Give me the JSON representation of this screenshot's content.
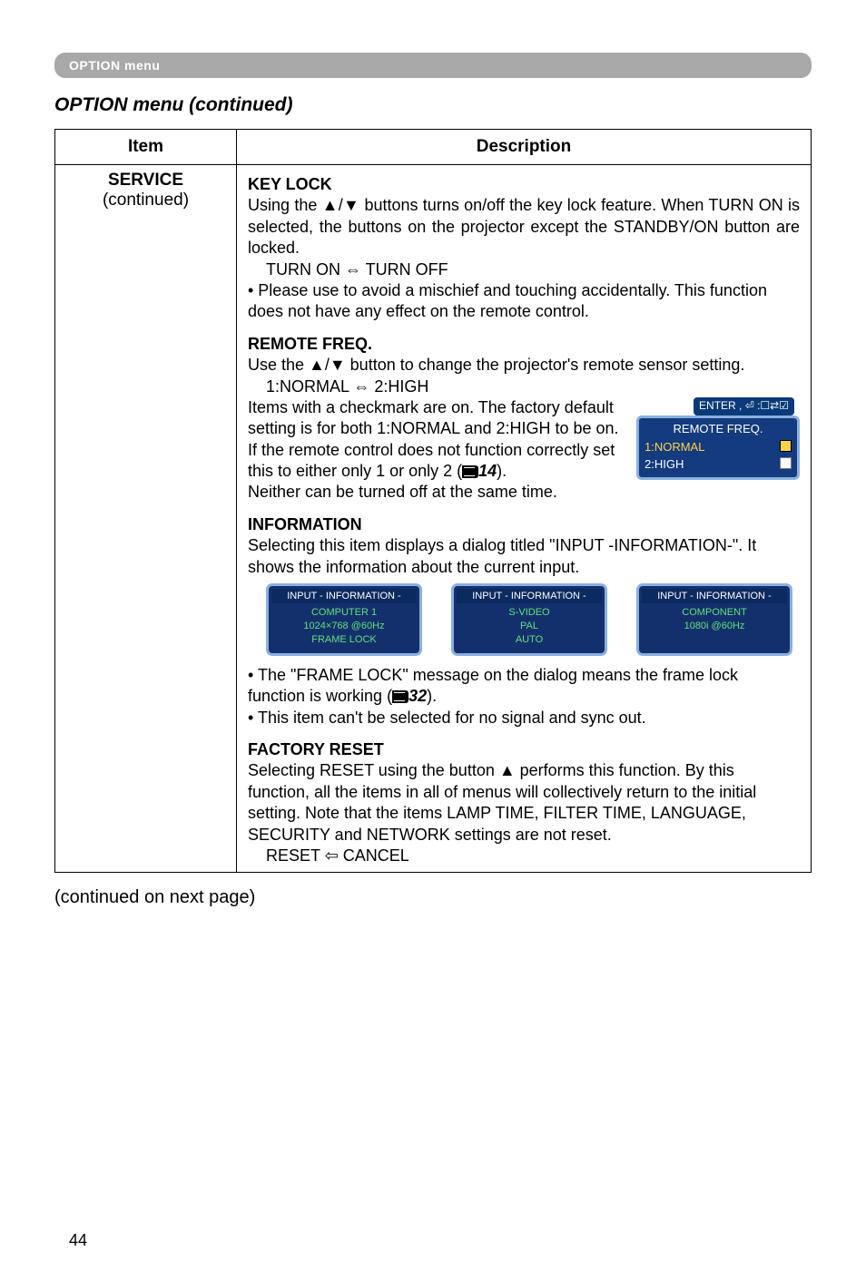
{
  "header_bar": "OPTION menu",
  "subtitle": "OPTION menu (continued)",
  "table": {
    "col_item": "Item",
    "col_desc": "Description",
    "left_service": "SERVICE",
    "left_continued": "(continued)"
  },
  "keylock": {
    "title": "KEY LOCK",
    "p1": "Using the ▲/▼ buttons turns on/off the key lock feature. When TURN ON is selected, the buttons on the projector except the STANDBY/ON button are locked.",
    "line_toggle": "TURN ON ⇔ TURN OFF",
    "bullet1": "• Please use to avoid a mischief and touching accidentally. This function does not have any effect on the remote control."
  },
  "remote": {
    "title": "REMOTE FREQ.",
    "p1": "Use the ▲/▼ button to change the projector's remote sensor setting.",
    "line_toggle": "1:NORMAL ⇔ 2:HIGH",
    "p2a": "Items with a checkmark are on. The factory default setting is for both 1:NORMAL and 2:HIGH to be on.  If the remote control does not function correctly set this to either only 1 or only 2 (",
    "ref": "14",
    "p2b": ").",
    "p3": "Neither can be turned off at the same time.",
    "panel": {
      "hint": "ENTER , ⏎ :☐⇄☑",
      "head": "REMOTE FREQ.",
      "opt1": "1:NORMAL",
      "opt2": "2:HIGH"
    }
  },
  "info": {
    "title": "INFORMATION",
    "p1": "Selecting this item displays a dialog titled \"INPUT -INFORMATION-\". It shows the information about the current input.",
    "boxes": [
      {
        "hdr": "INPUT - INFORMATION -",
        "l1": "COMPUTER 1",
        "l2": "1024×768 @60Hz",
        "l3": "FRAME LOCK"
      },
      {
        "hdr": "INPUT - INFORMATION -",
        "l1": "S-VIDEO",
        "l2": "PAL",
        "l3": "AUTO"
      },
      {
        "hdr": "INPUT - INFORMATION -",
        "l1": "COMPONENT",
        "l2": "1080i @60Hz",
        "l3": ""
      }
    ],
    "b1a": "• The \"FRAME LOCK\" message on the dialog means the frame lock function is working (",
    "ref": "32",
    "b1b": ").",
    "b2": "• This item can't be selected for no signal and sync out."
  },
  "factory": {
    "title": "FACTORY RESET",
    "p1": "Selecting RESET using the button ▲ performs this function. By this function, all the items in all of menus will collectively return to the initial setting. Note that the items LAMP TIME, FILTER TIME, LANGUAGE, SECURITY and NETWORK settings are not reset.",
    "line_toggle": "RESET ⇦ CANCEL"
  },
  "continued_next": "(continued on next page)",
  "page_number": "44",
  "colors": {
    "bar_bg": "#a8a8a8",
    "panel_bg": "#133b7e",
    "panel_border": "#89b0e0",
    "info_bg": "#14306c",
    "info_text": "#5fe07a",
    "opt_highlight": "#ffd24a"
  }
}
